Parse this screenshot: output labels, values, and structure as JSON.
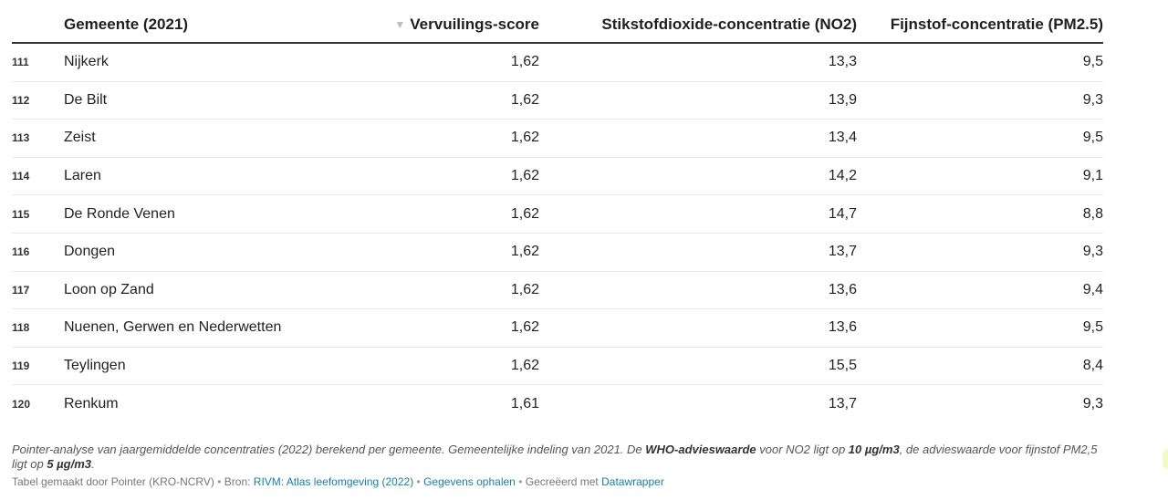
{
  "chart_data": {
    "type": "table",
    "columns": {
      "name": "Gemeente (2021)",
      "score": "Vervuilings-score",
      "no2": "Stikstofdioxide-concentratie (NO2)",
      "pm25": "Fijnstof-concentratie (PM2.5)"
    },
    "sort": {
      "column": "score",
      "icon": "sort-descending-icon",
      "glyph": "▼"
    },
    "rows": [
      {
        "rank": "111",
        "name": "Nijkerk",
        "score": "1,62",
        "no2": "13,3",
        "pm25": "9,5"
      },
      {
        "rank": "112",
        "name": "De Bilt",
        "score": "1,62",
        "no2": "13,9",
        "pm25": "9,3"
      },
      {
        "rank": "113",
        "name": "Zeist",
        "score": "1,62",
        "no2": "13,4",
        "pm25": "9,5"
      },
      {
        "rank": "114",
        "name": "Laren",
        "score": "1,62",
        "no2": "14,2",
        "pm25": "9,1"
      },
      {
        "rank": "115",
        "name": "De Ronde Venen",
        "score": "1,62",
        "no2": "14,7",
        "pm25": "8,8"
      },
      {
        "rank": "116",
        "name": "Dongen",
        "score": "1,62",
        "no2": "13,7",
        "pm25": "9,3"
      },
      {
        "rank": "117",
        "name": "Loon op Zand",
        "score": "1,62",
        "no2": "13,6",
        "pm25": "9,4"
      },
      {
        "rank": "118",
        "name": "Nuenen, Gerwen en Nederwetten",
        "score": "1,62",
        "no2": "13,6",
        "pm25": "9,5"
      },
      {
        "rank": "119",
        "name": "Teylingen",
        "score": "1,62",
        "no2": "15,5",
        "pm25": "8,4"
      },
      {
        "rank": "120",
        "name": "Renkum",
        "score": "1,61",
        "no2": "13,7",
        "pm25": "9,3"
      }
    ]
  },
  "notes": {
    "part1": "Pointer-analyse van jaargemiddelde concentraties (2022) berekend per gemeente. Gemeentelijke indeling van 2021. De ",
    "who": "WHO-advieswaarde",
    "part2": " voor NO2 ligt op ",
    "no2_value": "10 µg/m3",
    "part3": ", de advieswaarde voor fijnstof PM2,5 ligt op ",
    "pm_value": "5 µg/m3",
    "part4": "."
  },
  "footer": {
    "made_by": "Tabel gemaakt door Pointer (KRO-NCRV)",
    "source_prefix": "Bron: ",
    "source_link": "RIVM: Atlas leefomgeving (2022)",
    "get_data": "Gegevens ophalen",
    "created_prefix": "Gecreëerd met ",
    "created_link": "Datawrapper",
    "separator": "•"
  },
  "colors": {
    "link": "#1a7ea0",
    "text": "#222222",
    "muted": "#777777"
  }
}
